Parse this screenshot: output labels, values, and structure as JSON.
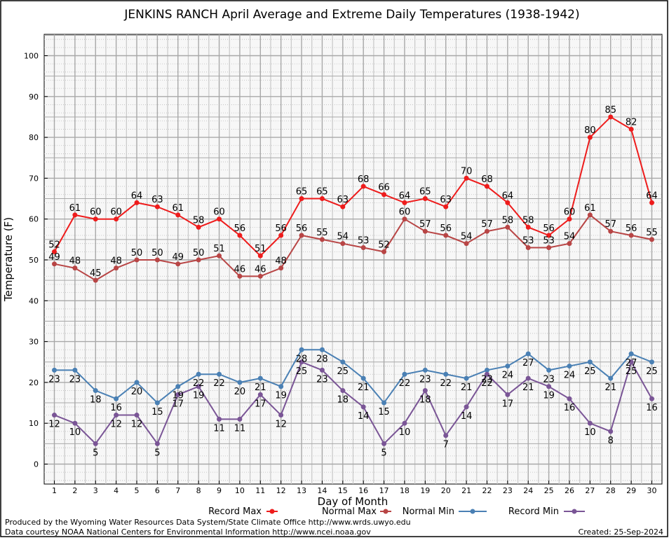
{
  "chart_data": {
    "type": "line",
    "title": "JENKINS RANCH April Average and Extreme Daily Temperatures (1938-1942)",
    "xlabel": "Day of Month",
    "ylabel": "Temperature (F)",
    "ylim": [
      -5,
      105
    ],
    "yticks": [
      0,
      10,
      20,
      30,
      40,
      50,
      60,
      70,
      80,
      90,
      100
    ],
    "x": [
      1,
      2,
      3,
      4,
      5,
      6,
      7,
      8,
      9,
      10,
      11,
      12,
      13,
      14,
      15,
      16,
      17,
      18,
      19,
      20,
      21,
      22,
      23,
      24,
      25,
      26,
      27,
      28,
      29,
      30
    ],
    "grid": true,
    "legend_position": "bottom",
    "series": [
      {
        "name": "Record Max",
        "color": "#ee1c1c",
        "values": [
          52,
          61,
          60,
          60,
          64,
          63,
          61,
          58,
          60,
          56,
          51,
          56,
          65,
          65,
          63,
          68,
          66,
          64,
          65,
          63,
          70,
          68,
          64,
          58,
          56,
          60,
          80,
          85,
          82,
          64
        ]
      },
      {
        "name": "Normal Max",
        "color": "#b84545",
        "values": [
          49,
          48,
          45,
          48,
          50,
          50,
          49,
          50,
          51,
          46,
          46,
          48,
          56,
          55,
          54,
          53,
          52,
          60,
          57,
          56,
          54,
          57,
          58,
          53,
          53,
          54,
          61,
          57,
          56,
          55
        ]
      },
      {
        "name": "Normal Min",
        "color": "#4a80b4",
        "values": [
          23,
          23,
          18,
          16,
          20,
          15,
          19,
          22,
          22,
          20,
          21,
          19,
          28,
          28,
          25,
          21,
          15,
          22,
          23,
          22,
          21,
          23,
          24,
          27,
          23,
          24,
          25,
          21,
          27,
          25
        ]
      },
      {
        "name": "Record Min",
        "color": "#7a5596",
        "values": [
          12,
          10,
          5,
          12,
          12,
          5,
          17,
          19,
          11,
          11,
          17,
          12,
          25,
          23,
          18,
          14,
          5,
          10,
          18,
          7,
          14,
          22,
          17,
          21,
          19,
          16,
          10,
          8,
          25,
          16
        ]
      }
    ]
  },
  "footer": {
    "producer": "Produced by the Wyoming Water Resources Data System/State Climate Office http://www.wrds.uwyo.edu",
    "courtesy": "Data courtesy NOAA National Centers for Environmental Information http://www.ncei.noaa.gov",
    "created": "Created:  25-Sep-2024"
  }
}
